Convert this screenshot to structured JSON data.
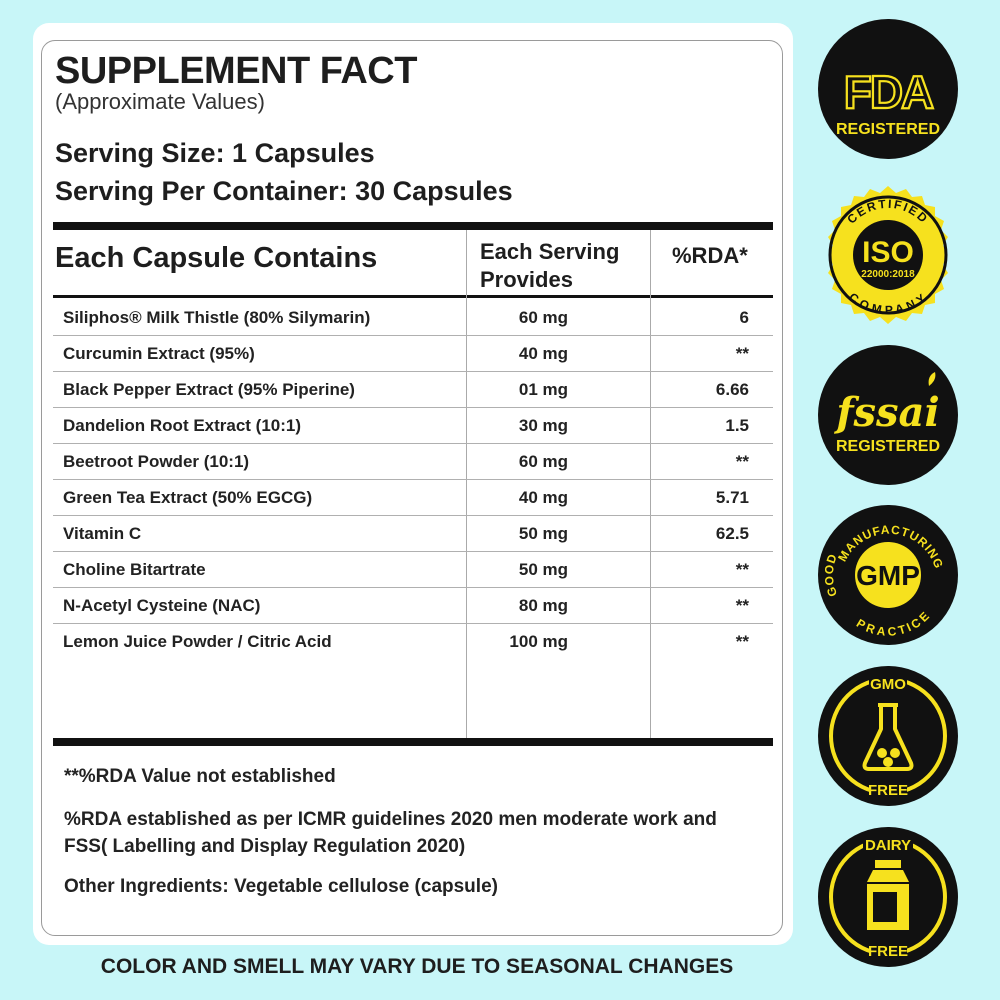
{
  "title": "SUPPLEMENT FACT",
  "subtitle": "(Approximate Values)",
  "serving_size": "Serving Size: 1 Capsules",
  "serving_per_container": "Serving Per Container: 30 Capsules",
  "table": {
    "headers": {
      "ingredient": "Each Capsule Contains",
      "amount_line1": "Each Serving",
      "amount_line2": "Provides",
      "rda": "%RDA*"
    },
    "rows": [
      {
        "name": "Siliphos® Milk Thistle (80% Silymarin)",
        "amount": "60 mg",
        "rda": "6"
      },
      {
        "name": "Curcumin Extract (95%)",
        "amount": "40 mg",
        "rda": "**"
      },
      {
        "name": "Black Pepper Extract (95% Piperine)",
        "amount": "01 mg",
        "rda": "6.66"
      },
      {
        "name": "Dandelion Root Extract (10:1)",
        "amount": "30 mg",
        "rda": "1.5"
      },
      {
        "name": "Beetroot Powder (10:1)",
        "amount": "60 mg",
        "rda": "**"
      },
      {
        "name": "Green Tea Extract (50% EGCG)",
        "amount": "40 mg",
        "rda": "5.71"
      },
      {
        "name": "Vitamin C",
        "amount": "50 mg",
        "rda": "62.5"
      },
      {
        "name": "Choline Bitartrate",
        "amount": "50 mg",
        "rda": "**"
      },
      {
        "name": "N-Acetyl Cysteine (NAC)",
        "amount": "80 mg",
        "rda": "**"
      },
      {
        "name": "Lemon Juice Powder / Citric Acid",
        "amount": "100 mg",
        "rda": "**"
      }
    ]
  },
  "notes": {
    "rda_not_established": "**%RDA Value not established",
    "rda_basis": "%RDA established as per ICMR guidelines 2020 men moderate work and FSS( Labelling and Display Regulation 2020)",
    "other_ingredients": "Other Ingredients: Vegetable cellulose (capsule)"
  },
  "footer": "COLOR AND SMELL MAY VARY DUE TO SEASONAL CHANGES",
  "badges": [
    {
      "icon": "fda-registered-badge",
      "line1": "FDA",
      "line2": "REGISTERED"
    },
    {
      "icon": "iso-certified-badge",
      "top": "CERTIFIED",
      "main": "ISO",
      "code": "22000:2018",
      "bottom": "COMPANY"
    },
    {
      "icon": "fssai-registered-badge",
      "line1": "fssai",
      "line2": "REGISTERED"
    },
    {
      "icon": "gmp-badge",
      "main": "GMP",
      "ring_left": "GOOD",
      "ring_top": "MANUFACTURING",
      "ring_bottom": "PRACTICE"
    },
    {
      "icon": "gmo-free-badge",
      "top": "GMO",
      "bottom": "FREE"
    },
    {
      "icon": "dairy-free-badge",
      "top": "DAIRY",
      "bottom": "FREE"
    }
  ],
  "colors": {
    "background": "#c8f6f8",
    "badge_dark": "#111111",
    "badge_yellow": "#f6e11e"
  }
}
